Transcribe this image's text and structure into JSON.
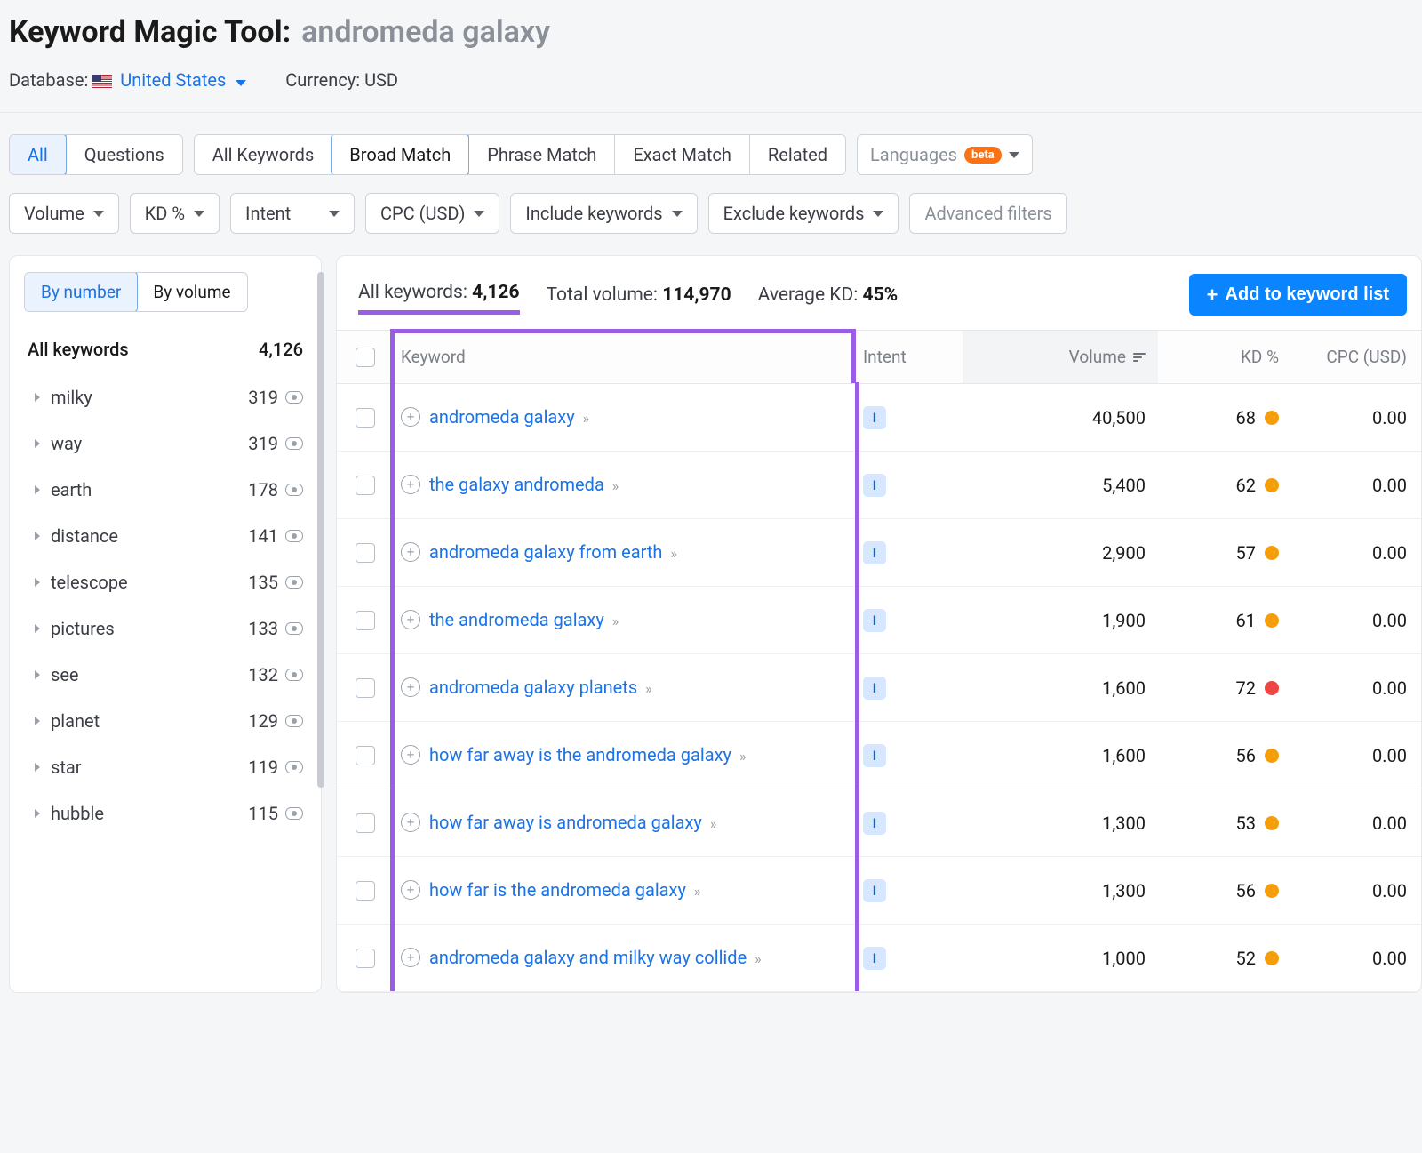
{
  "header": {
    "tool_name": "Keyword Magic Tool:",
    "search_term": "andromeda galaxy",
    "database_label": "Database:",
    "database_value": "United States",
    "currency_label": "Currency:",
    "currency_value": "USD"
  },
  "tabs": {
    "group1": [
      "All",
      "Questions"
    ],
    "group1_active": 0,
    "group2": [
      "All Keywords",
      "Broad Match",
      "Phrase Match",
      "Exact Match",
      "Related"
    ],
    "group2_active": 1,
    "languages_label": "Languages",
    "beta": "beta"
  },
  "filters": {
    "volume": "Volume",
    "kd": "KD %",
    "intent": "Intent",
    "cpc": "CPC (USD)",
    "include": "Include keywords",
    "exclude": "Exclude keywords",
    "advanced": "Advanced filters"
  },
  "sidebar": {
    "sort": [
      "By number",
      "By volume"
    ],
    "sort_active": 0,
    "all_label": "All keywords",
    "all_count": "4,126",
    "items": [
      {
        "label": "milky",
        "count": "319"
      },
      {
        "label": "way",
        "count": "319"
      },
      {
        "label": "earth",
        "count": "178"
      },
      {
        "label": "distance",
        "count": "141"
      },
      {
        "label": "telescope",
        "count": "135"
      },
      {
        "label": "pictures",
        "count": "133"
      },
      {
        "label": "see",
        "count": "132"
      },
      {
        "label": "planet",
        "count": "129"
      },
      {
        "label": "star",
        "count": "119"
      },
      {
        "label": "hubble",
        "count": "115"
      }
    ]
  },
  "results": {
    "stats": {
      "all_label": "All keywords:",
      "all_value": "4,126",
      "vol_label": "Total volume:",
      "vol_value": "114,970",
      "kd_label": "Average KD:",
      "kd_value": "45%"
    },
    "add_button": "Add to keyword list",
    "columns": {
      "keyword": "Keyword",
      "intent": "Intent",
      "volume": "Volume",
      "kd": "KD %",
      "cpc": "CPC (USD)"
    },
    "rows": [
      {
        "kw": "andromeda galaxy",
        "intent": "I",
        "volume": "40,500",
        "kd": "68",
        "kd_color": "#f59e0b",
        "cpc": "0.00"
      },
      {
        "kw": "the galaxy andromeda",
        "intent": "I",
        "volume": "5,400",
        "kd": "62",
        "kd_color": "#f59e0b",
        "cpc": "0.00"
      },
      {
        "kw": "andromeda galaxy from earth",
        "intent": "I",
        "volume": "2,900",
        "kd": "57",
        "kd_color": "#f59e0b",
        "cpc": "0.00"
      },
      {
        "kw": "the andromeda galaxy",
        "intent": "I",
        "volume": "1,900",
        "kd": "61",
        "kd_color": "#f59e0b",
        "cpc": "0.00"
      },
      {
        "kw": "andromeda galaxy planets",
        "intent": "I",
        "volume": "1,600",
        "kd": "72",
        "kd_color": "#ef4444",
        "cpc": "0.00"
      },
      {
        "kw": "how far away is the andromeda galaxy",
        "intent": "I",
        "volume": "1,600",
        "kd": "56",
        "kd_color": "#f59e0b",
        "cpc": "0.00"
      },
      {
        "kw": "how far away is andromeda galaxy",
        "intent": "I",
        "volume": "1,300",
        "kd": "53",
        "kd_color": "#f59e0b",
        "cpc": "0.00"
      },
      {
        "kw": "how far is the andromeda galaxy",
        "intent": "I",
        "volume": "1,300",
        "kd": "56",
        "kd_color": "#f59e0b",
        "cpc": "0.00"
      },
      {
        "kw": "andromeda galaxy and milky way collide",
        "intent": "I",
        "volume": "1,000",
        "kd": "52",
        "kd_color": "#f59e0b",
        "cpc": "0.00"
      }
    ]
  },
  "colors": {
    "link": "#1a73e8",
    "accent_purple": "#9b5de5",
    "primary_button": "#0a84ff",
    "kd_orange": "#f59e0b",
    "kd_red": "#ef4444",
    "intent_bg": "#d6e7ff",
    "intent_fg": "#1560c0"
  }
}
